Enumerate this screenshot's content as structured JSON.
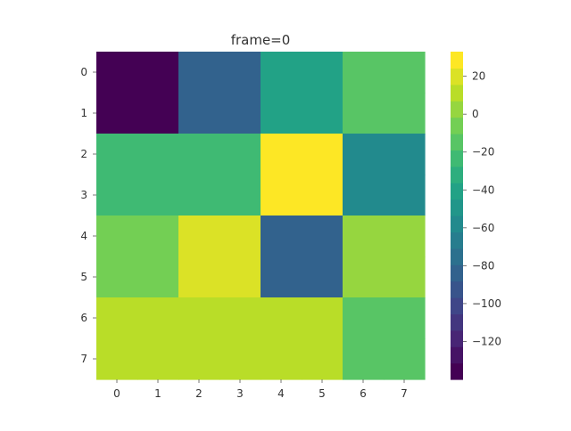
{
  "chart_data": {
    "type": "heatmap",
    "title": "frame=0",
    "xlabel": "",
    "ylabel": "",
    "x_ticks": [
      "0",
      "1",
      "2",
      "3",
      "4",
      "5",
      "6",
      "7"
    ],
    "y_ticks": [
      "0",
      "1",
      "2",
      "3",
      "4",
      "5",
      "6",
      "7"
    ],
    "cells": [
      [
        -140,
        -140,
        -80,
        -80,
        -40,
        -40,
        -15,
        -15
      ],
      [
        -140,
        -140,
        -80,
        -80,
        -40,
        -40,
        -15,
        -15
      ],
      [
        -25,
        -25,
        -25,
        -25,
        33,
        33,
        -60,
        -60
      ],
      [
        -25,
        -25,
        -25,
        -25,
        33,
        33,
        -60,
        -60
      ],
      [
        -5,
        -5,
        22,
        22,
        -80,
        -80,
        5,
        5
      ],
      [
        -5,
        -5,
        22,
        22,
        -80,
        -80,
        5,
        5
      ],
      [
        12,
        12,
        12,
        12,
        12,
        12,
        -12,
        -12
      ],
      [
        12,
        12,
        12,
        12,
        12,
        12,
        -12,
        -12
      ]
    ],
    "value_range": [
      -140,
      33
    ],
    "colormap": "viridis",
    "colorbar_ticks": [
      {
        "value": 20,
        "label": "20"
      },
      {
        "value": 0,
        "label": "0"
      },
      {
        "value": -20,
        "label": "−20"
      },
      {
        "value": -40,
        "label": "−40"
      },
      {
        "value": -60,
        "label": "−60"
      },
      {
        "value": -80,
        "label": "−80"
      },
      {
        "value": -100,
        "label": "−100"
      },
      {
        "value": -120,
        "label": "−120"
      }
    ],
    "colorbar_levels": 20,
    "grid": false
  }
}
